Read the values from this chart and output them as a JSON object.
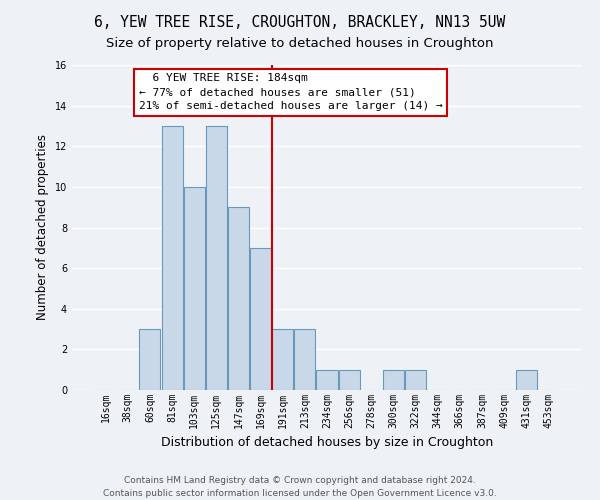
{
  "title": "6, YEW TREE RISE, CROUGHTON, BRACKLEY, NN13 5UW",
  "subtitle": "Size of property relative to detached houses in Croughton",
  "xlabel": "Distribution of detached houses by size in Croughton",
  "ylabel": "Number of detached properties",
  "categories": [
    "16sqm",
    "38sqm",
    "60sqm",
    "81sqm",
    "103sqm",
    "125sqm",
    "147sqm",
    "169sqm",
    "191sqm",
    "213sqm",
    "234sqm",
    "256sqm",
    "278sqm",
    "300sqm",
    "322sqm",
    "344sqm",
    "366sqm",
    "387sqm",
    "409sqm",
    "431sqm",
    "453sqm"
  ],
  "values": [
    0,
    0,
    3,
    13,
    10,
    13,
    9,
    7,
    3,
    3,
    1,
    1,
    0,
    1,
    1,
    0,
    0,
    0,
    0,
    1,
    0
  ],
  "bar_color": "#c8d8e8",
  "bar_edge_color": "#6699bb",
  "ref_line_index": 8,
  "ref_line_color": "#cc0000",
  "ylim": [
    0,
    16
  ],
  "yticks": [
    0,
    2,
    4,
    6,
    8,
    10,
    12,
    14,
    16
  ],
  "annotation_line1": "  6 YEW TREE RISE: 184sqm",
  "annotation_line2": "← 77% of detached houses are smaller (51)",
  "annotation_line3": "21% of semi-detached houses are larger (14) →",
  "annotation_box_color": "#ffffff",
  "annotation_box_edge": "#cc0000",
  "footer_text": "Contains HM Land Registry data © Crown copyright and database right 2024.\nContains public sector information licensed under the Open Government Licence v3.0.",
  "background_color": "#eef2f7",
  "grid_color": "#ffffff",
  "title_fontsize": 10.5,
  "subtitle_fontsize": 9.5,
  "xlabel_fontsize": 9,
  "ylabel_fontsize": 8.5,
  "tick_fontsize": 7,
  "annotation_fontsize": 8,
  "footer_fontsize": 6.5
}
